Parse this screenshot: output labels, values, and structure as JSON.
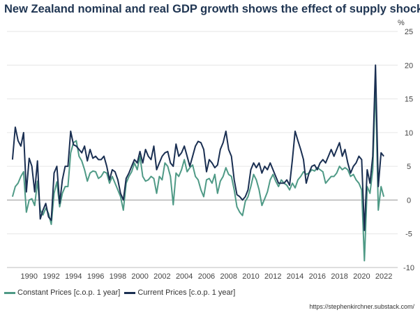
{
  "chart_data": {
    "type": "line",
    "title": "New Zealand nominal and real GDP growth shows the effect of supply shocks",
    "ylabel": "%",
    "xlabel": "",
    "ylim": [
      -10,
      25
    ],
    "yticks": [
      -10,
      -5,
      0,
      5,
      10,
      15,
      20,
      25
    ],
    "xlim": [
      1988.0,
      2023.25
    ],
    "xticks": [
      1990,
      1992,
      1994,
      1996,
      1998,
      2000,
      2002,
      2004,
      2006,
      2008,
      2010,
      2012,
      2014,
      2016,
      2018,
      2020,
      2022
    ],
    "grid": true,
    "legend": "bottom-left",
    "series": [
      {
        "name": "Constant Prices [c.o.p. 1 year]",
        "color": "#4f9a86",
        "points": [
          [
            1988.5,
            0.5
          ],
          [
            1988.75,
            2.0
          ],
          [
            1989.0,
            2.5
          ],
          [
            1989.25,
            3.5
          ],
          [
            1989.5,
            4.2
          ],
          [
            1989.75,
            -1.8
          ],
          [
            1990.0,
            0.0
          ],
          [
            1990.25,
            0.2
          ],
          [
            1990.5,
            -0.8
          ],
          [
            1990.75,
            2.8
          ],
          [
            1991.0,
            -1.5
          ],
          [
            1991.25,
            -2.2
          ],
          [
            1991.5,
            -1.2
          ],
          [
            1991.75,
            -2.0
          ],
          [
            1992.0,
            -3.6
          ],
          [
            1992.25,
            1.0
          ],
          [
            1992.5,
            2.7
          ],
          [
            1992.75,
            -1.0
          ],
          [
            1993.0,
            1.0
          ],
          [
            1993.25,
            2.0
          ],
          [
            1993.5,
            2.0
          ],
          [
            1993.75,
            7.0
          ],
          [
            1994.0,
            8.5
          ],
          [
            1994.25,
            8.8
          ],
          [
            1994.5,
            6.5
          ],
          [
            1994.75,
            5.8
          ],
          [
            1995.0,
            4.5
          ],
          [
            1995.25,
            2.8
          ],
          [
            1995.5,
            4.0
          ],
          [
            1995.75,
            4.3
          ],
          [
            1996.0,
            4.2
          ],
          [
            1996.25,
            3.2
          ],
          [
            1996.5,
            3.5
          ],
          [
            1996.75,
            4.2
          ],
          [
            1997.0,
            4.0
          ],
          [
            1997.25,
            2.5
          ],
          [
            1997.5,
            3.5
          ],
          [
            1997.75,
            2.5
          ],
          [
            1998.0,
            1.5
          ],
          [
            1998.25,
            0.5
          ],
          [
            1998.5,
            -1.5
          ],
          [
            1998.75,
            2.5
          ],
          [
            1999.0,
            3.5
          ],
          [
            1999.25,
            4.2
          ],
          [
            1999.5,
            5.5
          ],
          [
            1999.75,
            4.5
          ],
          [
            2000.0,
            6.5
          ],
          [
            2000.25,
            3.5
          ],
          [
            2000.5,
            2.8
          ],
          [
            2000.75,
            3.0
          ],
          [
            2001.0,
            3.5
          ],
          [
            2001.25,
            3.2
          ],
          [
            2001.5,
            1.0
          ],
          [
            2001.75,
            3.5
          ],
          [
            2002.0,
            3.0
          ],
          [
            2002.25,
            5.5
          ],
          [
            2002.5,
            5.0
          ],
          [
            2002.75,
            3.5
          ],
          [
            2003.0,
            -0.7
          ],
          [
            2003.25,
            4.0
          ],
          [
            2003.5,
            3.5
          ],
          [
            2003.75,
            4.5
          ],
          [
            2004.0,
            6.0
          ],
          [
            2004.25,
            4.2
          ],
          [
            2004.5,
            4.8
          ],
          [
            2004.75,
            5.2
          ],
          [
            2005.0,
            3.5
          ],
          [
            2005.25,
            3.0
          ],
          [
            2005.5,
            1.5
          ],
          [
            2005.75,
            0.5
          ],
          [
            2006.0,
            3.0
          ],
          [
            2006.25,
            3.2
          ],
          [
            2006.5,
            2.5
          ],
          [
            2006.75,
            3.8
          ],
          [
            2007.0,
            1.0
          ],
          [
            2007.25,
            2.8
          ],
          [
            2007.5,
            3.5
          ],
          [
            2007.75,
            4.8
          ],
          [
            2008.0,
            3.8
          ],
          [
            2008.25,
            3.5
          ],
          [
            2008.5,
            1.5
          ],
          [
            2008.75,
            -1.0
          ],
          [
            2009.0,
            -1.8
          ],
          [
            2009.25,
            -2.3
          ],
          [
            2009.5,
            -0.2
          ],
          [
            2009.75,
            0.5
          ],
          [
            2010.0,
            2.0
          ],
          [
            2010.25,
            3.8
          ],
          [
            2010.5,
            3.0
          ],
          [
            2010.75,
            1.5
          ],
          [
            2011.0,
            -0.8
          ],
          [
            2011.25,
            0.2
          ],
          [
            2011.5,
            1.2
          ],
          [
            2011.75,
            3.0
          ],
          [
            2012.0,
            3.8
          ],
          [
            2012.25,
            2.8
          ],
          [
            2012.5,
            2.0
          ],
          [
            2012.75,
            3.0
          ],
          [
            2013.0,
            2.5
          ],
          [
            2013.25,
            2.2
          ],
          [
            2013.5,
            1.5
          ],
          [
            2013.75,
            2.5
          ],
          [
            2014.0,
            1.8
          ],
          [
            2014.25,
            3.0
          ],
          [
            2014.5,
            3.5
          ],
          [
            2014.75,
            4.2
          ],
          [
            2015.0,
            3.8
          ],
          [
            2015.25,
            4.0
          ],
          [
            2015.5,
            4.5
          ],
          [
            2015.75,
            4.3
          ],
          [
            2016.0,
            4.8
          ],
          [
            2016.25,
            4.5
          ],
          [
            2016.5,
            4.2
          ],
          [
            2016.75,
            2.5
          ],
          [
            2017.0,
            3.0
          ],
          [
            2017.25,
            3.5
          ],
          [
            2017.5,
            3.5
          ],
          [
            2017.75,
            4.0
          ],
          [
            2018.0,
            5.0
          ],
          [
            2018.25,
            4.5
          ],
          [
            2018.5,
            4.8
          ],
          [
            2018.75,
            4.5
          ],
          [
            2019.0,
            3.5
          ],
          [
            2019.25,
            3.8
          ],
          [
            2019.5,
            3.0
          ],
          [
            2019.75,
            2.5
          ],
          [
            2020.0,
            1.5
          ],
          [
            2020.25,
            -9.0
          ],
          [
            2020.5,
            2.0
          ],
          [
            2020.75,
            1.0
          ],
          [
            2021.0,
            4.5
          ],
          [
            2021.25,
            17.5
          ],
          [
            2021.5,
            -1.5
          ],
          [
            2021.75,
            2.0
          ],
          [
            2022.0,
            0.5
          ]
        ]
      },
      {
        "name": "Current Prices [c.o.p. 1 year]",
        "color": "#1a2f52",
        "points": [
          [
            1988.5,
            6.0
          ],
          [
            1988.75,
            10.8
          ],
          [
            1989.0,
            8.8
          ],
          [
            1989.25,
            8.0
          ],
          [
            1989.5,
            10.0
          ],
          [
            1989.75,
            1.2
          ],
          [
            1990.0,
            6.2
          ],
          [
            1990.25,
            5.0
          ],
          [
            1990.5,
            1.2
          ],
          [
            1990.75,
            5.8
          ],
          [
            1991.0,
            -2.8
          ],
          [
            1991.25,
            -1.5
          ],
          [
            1991.5,
            -0.5
          ],
          [
            1991.75,
            -2.5
          ],
          [
            1992.0,
            -3.0
          ],
          [
            1992.25,
            4.0
          ],
          [
            1992.5,
            5.0
          ],
          [
            1992.75,
            -0.5
          ],
          [
            1993.0,
            3.0
          ],
          [
            1993.25,
            5.0
          ],
          [
            1993.5,
            5.0
          ],
          [
            1993.75,
            10.2
          ],
          [
            1994.0,
            8.2
          ],
          [
            1994.25,
            8.0
          ],
          [
            1994.5,
            7.5
          ],
          [
            1994.75,
            7.0
          ],
          [
            1995.0,
            8.0
          ],
          [
            1995.25,
            5.8
          ],
          [
            1995.5,
            7.5
          ],
          [
            1995.75,
            6.2
          ],
          [
            1996.0,
            6.5
          ],
          [
            1996.25,
            6.0
          ],
          [
            1996.5,
            6.0
          ],
          [
            1996.75,
            6.5
          ],
          [
            1997.0,
            5.0
          ],
          [
            1997.25,
            3.0
          ],
          [
            1997.5,
            4.5
          ],
          [
            1997.75,
            4.2
          ],
          [
            1998.0,
            3.0
          ],
          [
            1998.25,
            1.0
          ],
          [
            1998.5,
            0.0
          ],
          [
            1998.75,
            3.2
          ],
          [
            1999.0,
            4.0
          ],
          [
            1999.25,
            5.0
          ],
          [
            1999.5,
            6.0
          ],
          [
            1999.75,
            5.5
          ],
          [
            2000.0,
            7.2
          ],
          [
            2000.25,
            5.5
          ],
          [
            2000.5,
            7.5
          ],
          [
            2000.75,
            6.5
          ],
          [
            2001.0,
            6.0
          ],
          [
            2001.25,
            8.0
          ],
          [
            2001.5,
            4.5
          ],
          [
            2001.75,
            5.5
          ],
          [
            2002.0,
            6.5
          ],
          [
            2002.25,
            7.0
          ],
          [
            2002.5,
            7.2
          ],
          [
            2002.75,
            5.5
          ],
          [
            2003.0,
            5.0
          ],
          [
            2003.25,
            8.3
          ],
          [
            2003.5,
            6.5
          ],
          [
            2003.75,
            7.0
          ],
          [
            2004.0,
            8.0
          ],
          [
            2004.25,
            6.5
          ],
          [
            2004.5,
            5.0
          ],
          [
            2004.75,
            6.5
          ],
          [
            2005.0,
            8.0
          ],
          [
            2005.25,
            8.7
          ],
          [
            2005.5,
            8.5
          ],
          [
            2005.75,
            7.5
          ],
          [
            2006.0,
            4.2
          ],
          [
            2006.25,
            6.0
          ],
          [
            2006.5,
            5.5
          ],
          [
            2006.75,
            4.8
          ],
          [
            2007.0,
            5.2
          ],
          [
            2007.25,
            7.5
          ],
          [
            2007.5,
            8.5
          ],
          [
            2007.75,
            10.2
          ],
          [
            2008.0,
            7.5
          ],
          [
            2008.25,
            6.5
          ],
          [
            2008.5,
            3.0
          ],
          [
            2008.75,
            0.8
          ],
          [
            2009.0,
            0.5
          ],
          [
            2009.25,
            0.0
          ],
          [
            2009.5,
            0.5
          ],
          [
            2009.75,
            1.5
          ],
          [
            2010.0,
            4.5
          ],
          [
            2010.25,
            5.5
          ],
          [
            2010.5,
            4.8
          ],
          [
            2010.75,
            5.5
          ],
          [
            2011.0,
            4.0
          ],
          [
            2011.25,
            5.0
          ],
          [
            2011.5,
            4.5
          ],
          [
            2011.75,
            5.5
          ],
          [
            2012.0,
            4.5
          ],
          [
            2012.25,
            3.5
          ],
          [
            2012.5,
            2.5
          ],
          [
            2012.75,
            2.5
          ],
          [
            2013.0,
            2.5
          ],
          [
            2013.25,
            3.0
          ],
          [
            2013.5,
            2.2
          ],
          [
            2013.75,
            6.0
          ],
          [
            2014.0,
            10.2
          ],
          [
            2014.25,
            8.8
          ],
          [
            2014.5,
            7.5
          ],
          [
            2014.75,
            6.0
          ],
          [
            2015.0,
            2.5
          ],
          [
            2015.25,
            4.0
          ],
          [
            2015.5,
            5.0
          ],
          [
            2015.75,
            5.2
          ],
          [
            2016.0,
            4.5
          ],
          [
            2016.25,
            5.5
          ],
          [
            2016.5,
            6.0
          ],
          [
            2016.75,
            5.5
          ],
          [
            2017.0,
            6.5
          ],
          [
            2017.25,
            7.5
          ],
          [
            2017.5,
            6.5
          ],
          [
            2017.75,
            7.5
          ],
          [
            2018.0,
            8.5
          ],
          [
            2018.25,
            6.5
          ],
          [
            2018.5,
            7.5
          ],
          [
            2018.75,
            5.5
          ],
          [
            2019.0,
            4.0
          ],
          [
            2019.25,
            5.0
          ],
          [
            2019.5,
            5.5
          ],
          [
            2019.75,
            6.5
          ],
          [
            2020.0,
            6.0
          ],
          [
            2020.25,
            -4.5
          ],
          [
            2020.5,
            4.5
          ],
          [
            2020.75,
            2.5
          ],
          [
            2021.0,
            6.5
          ],
          [
            2021.25,
            20.0
          ],
          [
            2021.5,
            2.0
          ],
          [
            2021.75,
            7.0
          ],
          [
            2022.0,
            6.5
          ]
        ]
      }
    ]
  },
  "source": "https://stephenkirchner.substack.com/"
}
